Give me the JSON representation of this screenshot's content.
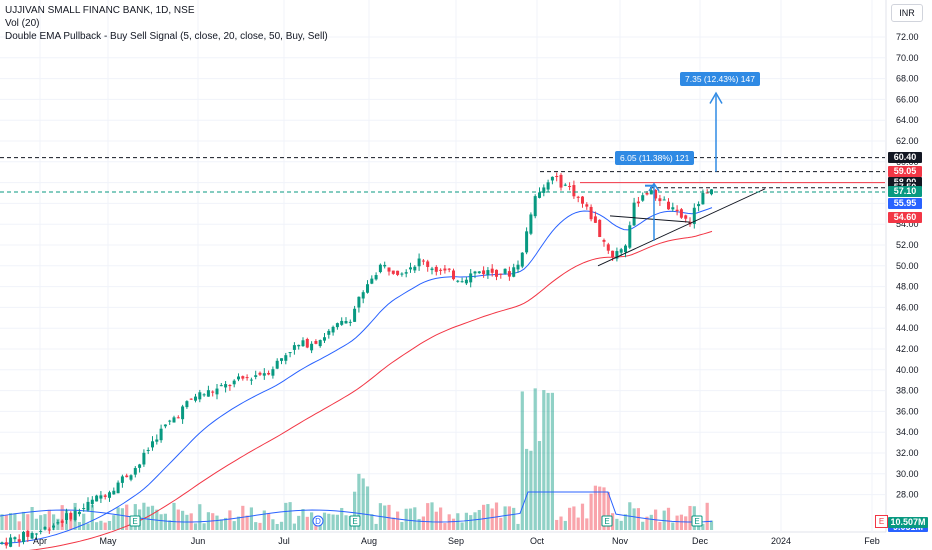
{
  "legend": {
    "symbol_line": "UJJIVAN SMALL FINANC BANK, 1D, NSE",
    "volume_line": "Vol (20)",
    "indicator_line": "Double EMA Pullback - Buy Sell Signal (5, close, 20, close, 50, Buy, Sell)"
  },
  "currency": "INR",
  "y_axis": {
    "ticks": [
      "72.00",
      "70.00",
      "68.00",
      "66.00",
      "64.00",
      "62.00",
      "60.00",
      "58.00",
      "56.00",
      "54.00",
      "52.00",
      "50.00",
      "48.00",
      "46.00",
      "44.00",
      "42.00",
      "40.00",
      "38.00",
      "36.00",
      "34.00",
      "32.00",
      "30.00",
      "28.00"
    ],
    "tick_values": [
      72,
      70,
      68,
      66,
      64,
      62,
      60,
      58,
      56,
      54,
      52,
      50,
      48,
      46,
      44,
      42,
      40,
      38,
      36,
      34,
      32,
      30,
      28
    ]
  },
  "x_axis": {
    "ticks": [
      "Apr",
      "May",
      "Jun",
      "Jul",
      "Aug",
      "Sep",
      "Oct",
      "Nov",
      "Dec",
      "2024",
      "Feb"
    ]
  },
  "price_tags": [
    {
      "label": "60.40",
      "value": 60.4,
      "color": "#131722"
    },
    {
      "label": "59.05",
      "value": 59.05,
      "color": "#f23645"
    },
    {
      "label": "58.00",
      "value": 58.0,
      "color": "#131722"
    },
    {
      "label": "57.50",
      "value": 57.5,
      "color": "#131722"
    },
    {
      "label": "57.10",
      "value": 57.1,
      "color": "#089981"
    },
    {
      "label": "55.95",
      "value": 55.95,
      "color": "#2962ff"
    },
    {
      "label": "54.60",
      "value": 54.6,
      "color": "#f23645"
    }
  ],
  "volume_tag": {
    "label": "10.507M",
    "color": "#089981"
  },
  "volume_tag_partial": "9.051M",
  "callouts": [
    {
      "text": "6.05 (11.38%) 121"
    },
    {
      "text": "7.35 (12.43%) 147"
    }
  ],
  "event_badge": "E",
  "colors": {
    "up": "#089981",
    "down": "#f23645",
    "ema_fast": "#2962ff",
    "ema_slow": "#f23645",
    "trendline": "#131722",
    "callout": "#2f8ae4"
  }
}
